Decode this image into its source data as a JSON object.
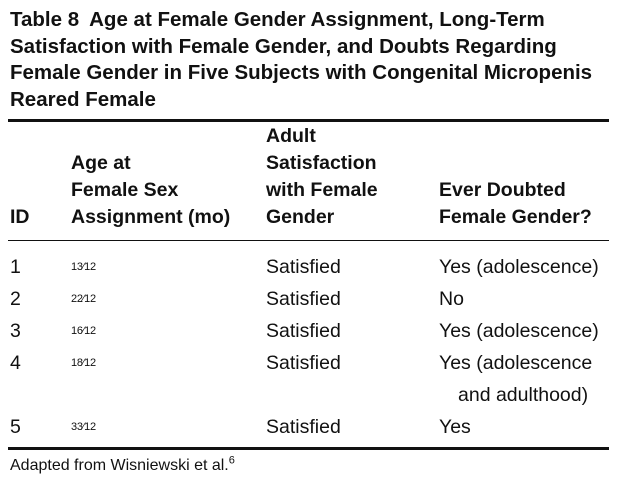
{
  "table": {
    "label": "Table 8",
    "title": "Age at Female Gender Assignment, Long-Term Satisfaction with Female Gender, and Doubts Regarding Female Gender in Five Subjects with Congenital Micropenis Reared Female",
    "headers": {
      "id": "ID",
      "age_line1": "Age at",
      "age_line2": "Female Sex",
      "age_line3": "Assignment (mo)",
      "sat_line1": "Adult",
      "sat_line2": "Satisfaction",
      "sat_line3": "with Female",
      "sat_line4": "Gender",
      "doubt_line1": "Ever Doubted",
      "doubt_line2": "Female Gender?"
    },
    "rows": [
      {
        "id": "1",
        "age": "13⁄12",
        "satisfaction": "Satisfied",
        "doubt_line1": "Yes (adolescence)",
        "doubt_line2": ""
      },
      {
        "id": "2",
        "age": "22⁄12",
        "satisfaction": "Satisfied",
        "doubt_line1": "No",
        "doubt_line2": ""
      },
      {
        "id": "3",
        "age": "16⁄12",
        "satisfaction": "Satisfied",
        "doubt_line1": "Yes (adolescence)",
        "doubt_line2": ""
      },
      {
        "id": "4",
        "age": "18⁄12",
        "satisfaction": "Satisfied",
        "doubt_line1": "Yes (adolescence",
        "doubt_line2": "and adulthood)"
      },
      {
        "id": "5",
        "age": "33⁄12",
        "satisfaction": "Satisfied",
        "doubt_line1": "Yes",
        "doubt_line2": ""
      }
    ],
    "footer_text": "Adapted from Wisniewski et al.",
    "footer_ref": "6"
  }
}
